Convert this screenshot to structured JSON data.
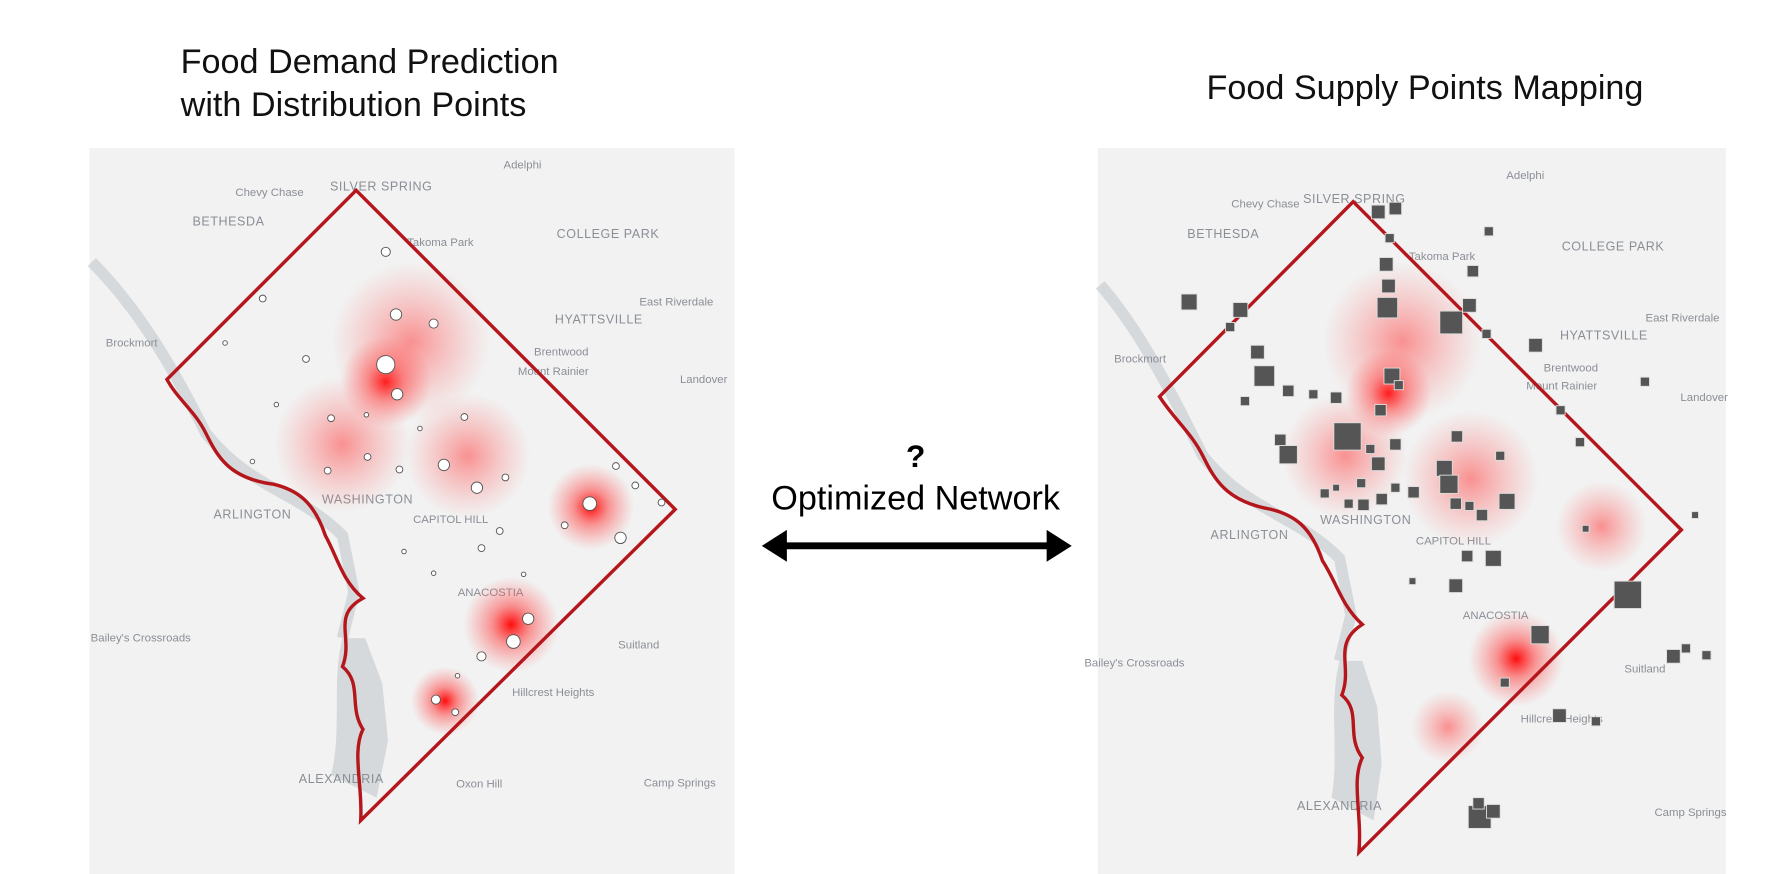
{
  "left_panel": {
    "title_lines": [
      "Food Demand Prediction",
      "with Distribution Points"
    ],
    "map_labels": [
      "SILVER SPRING",
      "Takoma Park",
      "COLLEGE PARK",
      "Adelphi",
      "Chevy Chase",
      "BETHESDA",
      "HYATTSVILLE",
      "Brentwood",
      "Mount Rainier",
      "Landover",
      "WASHINGTON",
      "ARLINGTON",
      "Bailey's Crossroads",
      "Suitland",
      "Hillcrest Heights",
      "ALEXANDRIA",
      "Oxon Hill",
      "Camp Springs",
      "East Riverdale",
      "Brockmort",
      "CAPITOL HILL",
      "ANACOSTIA"
    ]
  },
  "middle": {
    "question": "?",
    "label": "Optimized Network"
  },
  "right_panel": {
    "title": "Food Supply Points Mapping",
    "map_labels": [
      "SILVER SPRING",
      "Takoma Park",
      "COLLEGE PARK",
      "Adelphi",
      "Chevy Chase",
      "BETHESDA",
      "HYATTSVILLE",
      "Brentwood",
      "Mount Rainier",
      "Landover",
      "WASHINGTON",
      "ARLINGTON",
      "Bailey's Crossroads",
      "Suitland",
      "Hillcrest Heights",
      "ALEXANDRIA",
      "Camp Springs",
      "East Riverdale",
      "Brockmort",
      "CAPITOL HILL",
      "ANACOSTIA"
    ]
  }
}
